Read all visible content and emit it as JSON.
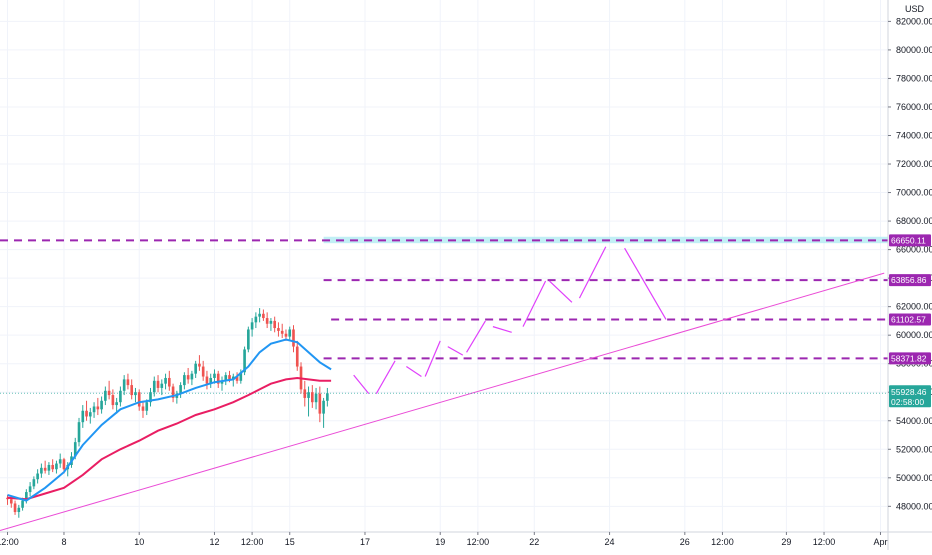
{
  "chart_data": {
    "type": "candlestick",
    "currency": "USD",
    "y_axis": {
      "ticks": [
        48000,
        50000,
        52000,
        54000,
        56000,
        58000,
        60000,
        62000,
        64000,
        66000,
        68000,
        70000,
        72000,
        74000,
        76000,
        78000,
        80000,
        82000
      ],
      "tick_labels": [
        "48000.00",
        "50000.00",
        "52000.00",
        "54000.00",
        "56000.00",
        "58000.00",
        "60000.00",
        "62000.00",
        "64000.00",
        "66000.00",
        "68000.00",
        "70000.00",
        "72000.00",
        "74000.00",
        "76000.00",
        "78000.00",
        "80000.00",
        "82000.00"
      ],
      "range": [
        46200,
        83500
      ]
    },
    "x_axis": {
      "ticks": [
        {
          "label": "12:00",
          "bar": 0
        },
        {
          "label": "8",
          "bar": 15
        },
        {
          "label": "10",
          "bar": 35
        },
        {
          "label": "12",
          "bar": 55
        },
        {
          "label": "12:00",
          "bar": 65
        },
        {
          "label": "15",
          "bar": 75
        },
        {
          "label": "17",
          "bar": 95
        },
        {
          "label": "19",
          "bar": 115
        },
        {
          "label": "12:00",
          "bar": 125
        },
        {
          "label": "22",
          "bar": 140
        },
        {
          "label": "24",
          "bar": 160
        },
        {
          "label": "26",
          "bar": 180
        },
        {
          "label": "12:00",
          "bar": 190
        },
        {
          "label": "29",
          "bar": 207
        },
        {
          "label": "12:00",
          "bar": 217
        },
        {
          "label": "Apr",
          "bar": 232
        }
      ],
      "bar_range": [
        -2,
        234
      ]
    },
    "candles": [
      [
        48600,
        48800,
        48100,
        48500
      ],
      [
        48500,
        48700,
        47900,
        48200
      ],
      [
        48200,
        48400,
        47400,
        47600
      ],
      [
        47600,
        48100,
        47200,
        47900
      ],
      [
        47900,
        48600,
        47700,
        48400
      ],
      [
        48400,
        49200,
        48200,
        49000
      ],
      [
        49000,
        49700,
        48700,
        49400
      ],
      [
        49400,
        50100,
        49200,
        49900
      ],
      [
        49900,
        50600,
        49600,
        50300
      ],
      [
        50300,
        51000,
        50000,
        50700
      ],
      [
        50700,
        51200,
        50300,
        50500
      ],
      [
        50500,
        51100,
        50200,
        50900
      ],
      [
        50900,
        51300,
        50400,
        50600
      ],
      [
        50600,
        51200,
        50300,
        51000
      ],
      [
        51000,
        51700,
        50700,
        51300
      ],
      [
        51300,
        51400,
        50300,
        50600
      ],
      [
        50600,
        51100,
        50100,
        50900
      ],
      [
        50900,
        51800,
        50700,
        51500
      ],
      [
        51500,
        52800,
        51300,
        52500
      ],
      [
        52500,
        54200,
        52200,
        53900
      ],
      [
        53900,
        55100,
        53500,
        54700
      ],
      [
        54700,
        55400,
        54000,
        54300
      ],
      [
        54300,
        54900,
        53800,
        54600
      ],
      [
        54600,
        55300,
        54200,
        55000
      ],
      [
        55000,
        55600,
        54400,
        54800
      ],
      [
        54800,
        55700,
        54500,
        55400
      ],
      [
        55400,
        56400,
        55100,
        56100
      ],
      [
        56100,
        56800,
        55500,
        55800
      ],
      [
        55800,
        56200,
        54800,
        55100
      ],
      [
        55100,
        55600,
        54500,
        55300
      ],
      [
        55300,
        56400,
        55000,
        56100
      ],
      [
        56100,
        57200,
        55800,
        56900
      ],
      [
        56900,
        57300,
        56200,
        56500
      ],
      [
        56500,
        56900,
        55500,
        55800
      ],
      [
        55800,
        56300,
        55300,
        56000
      ],
      [
        56000,
        56200,
        54700,
        55000
      ],
      [
        55000,
        55400,
        54200,
        54700
      ],
      [
        54700,
        55500,
        54400,
        55300
      ],
      [
        55300,
        56300,
        55000,
        56000
      ],
      [
        56000,
        57100,
        55700,
        56800
      ],
      [
        56800,
        57200,
        56000,
        56300
      ],
      [
        56300,
        56900,
        55800,
        56600
      ],
      [
        56600,
        57300,
        56200,
        57000
      ],
      [
        57000,
        57500,
        56100,
        56400
      ],
      [
        56400,
        56600,
        55300,
        55600
      ],
      [
        55600,
        56100,
        55200,
        55900
      ],
      [
        55900,
        56700,
        55600,
        56500
      ],
      [
        56500,
        57400,
        56200,
        57200
      ],
      [
        57200,
        57700,
        56600,
        56900
      ],
      [
        56900,
        57500,
        56500,
        57300
      ],
      [
        57300,
        58200,
        57000,
        58000
      ],
      [
        58000,
        58600,
        57500,
        57800
      ],
      [
        57800,
        58200,
        56800,
        57100
      ],
      [
        57100,
        57500,
        56200,
        56600
      ],
      [
        56600,
        57300,
        56300,
        57000
      ],
      [
        57000,
        57600,
        56600,
        57300
      ],
      [
        57300,
        57500,
        56300,
        56600
      ],
      [
        56600,
        57100,
        56100,
        56800
      ],
      [
        56800,
        57400,
        56500,
        57200
      ],
      [
        57200,
        57500,
        56700,
        56900
      ],
      [
        56900,
        57300,
        56400,
        57100
      ],
      [
        57100,
        57400,
        56600,
        56800
      ],
      [
        56800,
        57600,
        56600,
        57400
      ],
      [
        57400,
        59200,
        57200,
        59000
      ],
      [
        59000,
        60600,
        58800,
        60400
      ],
      [
        60400,
        61200,
        59900,
        60900
      ],
      [
        60900,
        61600,
        60500,
        61300
      ],
      [
        61300,
        61900,
        60900,
        61500
      ],
      [
        61500,
        61800,
        61000,
        61200
      ],
      [
        61200,
        61600,
        60500,
        60800
      ],
      [
        60800,
        61200,
        60300,
        61000
      ],
      [
        61000,
        61300,
        60200,
        60500
      ],
      [
        60500,
        60900,
        59900,
        60300
      ],
      [
        60300,
        60800,
        59800,
        60100
      ],
      [
        60100,
        60400,
        59600,
        59900
      ],
      [
        59900,
        60600,
        59700,
        60400
      ],
      [
        60400,
        60700,
        58800,
        59200
      ],
      [
        59200,
        59600,
        57500,
        57800
      ],
      [
        57800,
        58100,
        55900,
        56200
      ],
      [
        56200,
        56800,
        55000,
        55600
      ],
      [
        55600,
        56400,
        54300,
        56000
      ],
      [
        56000,
        56500,
        54900,
        55300
      ],
      [
        55300,
        56300,
        54800,
        55900
      ],
      [
        55900,
        56400,
        53900,
        54500
      ],
      [
        54500,
        55600,
        53500,
        55400
      ],
      [
        55400,
        56300,
        55000,
        55929
      ]
    ],
    "ema_fast_blue": [
      [
        0,
        48800
      ],
      [
        5,
        48400
      ],
      [
        10,
        49300
      ],
      [
        15,
        50400
      ],
      [
        20,
        52300
      ],
      [
        25,
        53700
      ],
      [
        30,
        54800
      ],
      [
        35,
        55300
      ],
      [
        40,
        55500
      ],
      [
        45,
        55800
      ],
      [
        50,
        56300
      ],
      [
        55,
        56700
      ],
      [
        60,
        56900
      ],
      [
        64,
        57800
      ],
      [
        67,
        58800
      ],
      [
        70,
        59400
      ],
      [
        74,
        59700
      ],
      [
        77,
        59500
      ],
      [
        80,
        58800
      ],
      [
        83,
        58100
      ],
      [
        86,
        57600
      ]
    ],
    "ema_slow_red": [
      [
        0,
        48600
      ],
      [
        5,
        48500
      ],
      [
        10,
        48900
      ],
      [
        15,
        49300
      ],
      [
        20,
        50200
      ],
      [
        25,
        51300
      ],
      [
        30,
        52000
      ],
      [
        35,
        52600
      ],
      [
        40,
        53300
      ],
      [
        45,
        53800
      ],
      [
        50,
        54400
      ],
      [
        55,
        54800
      ],
      [
        60,
        55300
      ],
      [
        64,
        55800
      ],
      [
        67,
        56200
      ],
      [
        70,
        56600
      ],
      [
        74,
        56900
      ],
      [
        77,
        57000
      ],
      [
        80,
        56900
      ],
      [
        83,
        56800
      ],
      [
        86,
        56800
      ]
    ],
    "trendline": [
      [
        -2,
        46300
      ],
      [
        233,
        64350
      ]
    ],
    "levels": [
      {
        "label": "66650.11",
        "value": 66650.11,
        "start_bar": -2
      },
      {
        "label": "63856.86",
        "value": 63856.86,
        "start_bar": 84
      },
      {
        "label": "61102.57",
        "value": 61102.57,
        "start_bar": 86
      },
      {
        "label": "58371.82",
        "value": 58371.82,
        "start_bar": 84
      }
    ],
    "highlight_zone": {
      "from": 66450,
      "to": 66900,
      "start_bar": 84
    },
    "projection_segments": [
      [
        [
          92,
          57200
        ],
        [
          96,
          55900
        ]
      ],
      [
        [
          98,
          55900
        ],
        [
          103,
          58200
        ]
      ],
      [
        [
          106,
          57800
        ],
        [
          110,
          57100
        ]
      ],
      [
        [
          111,
          57100
        ],
        [
          115,
          59600
        ]
      ],
      [
        [
          117,
          59200
        ],
        [
          121,
          58600
        ]
      ],
      [
        [
          122,
          58800
        ],
        [
          127,
          61000
        ]
      ],
      [
        [
          129,
          60600
        ],
        [
          134,
          60200
        ]
      ],
      [
        [
          137,
          60600
        ],
        [
          143,
          63800
        ]
      ],
      [
        [
          144,
          63800
        ],
        [
          150,
          62300
        ]
      ],
      [
        [
          152,
          62600
        ],
        [
          159,
          66200
        ]
      ],
      [
        [
          164,
          66100
        ],
        [
          175,
          61100
        ]
      ]
    ],
    "last_price": {
      "value": "55928.46",
      "countdown": "02:58:00"
    }
  }
}
